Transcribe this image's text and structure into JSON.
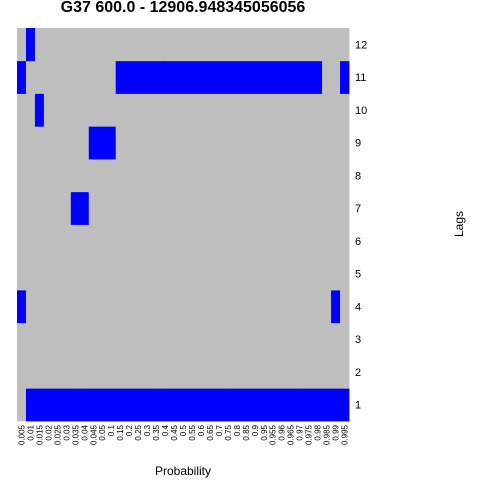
{
  "chart_data": {
    "type": "heatmap",
    "title": "G37 600.0 - 12906.948345056056",
    "xlabel": "Probability",
    "ylabel": "Lags",
    "x_ticks": [
      "0.005",
      "0.01",
      "0.015",
      "0.02",
      "0.025",
      "0.03",
      "0.035",
      "0.04",
      "0.045",
      "0.05",
      "0.1",
      "0.15",
      "0.2",
      "0.25",
      "0.3",
      "0.35",
      "0.4",
      "0.45",
      "0.5",
      "0.55",
      "0.6",
      "0.65",
      "0.7",
      "0.75",
      "0.8",
      "0.85",
      "0.9",
      "0.95",
      "0.955",
      "0.96",
      "0.965",
      "0.97",
      "0.975",
      "0.98",
      "0.985",
      "0.99",
      "0.995"
    ],
    "y_ticks": [
      "1",
      "2",
      "3",
      "4",
      "5",
      "6",
      "7",
      "8",
      "9",
      "10",
      "11",
      "12"
    ],
    "colors": {
      "off": "#bebebe",
      "on": "#0000ff"
    },
    "grid": false,
    "cells": [
      {
        "lag": 1,
        "on": [
          "0.01",
          "0.015",
          "0.02",
          "0.025",
          "0.03",
          "0.035",
          "0.04",
          "0.045",
          "0.05",
          "0.1",
          "0.15",
          "0.2",
          "0.25",
          "0.3",
          "0.35",
          "0.4",
          "0.45",
          "0.5",
          "0.55",
          "0.6",
          "0.65",
          "0.7",
          "0.75",
          "0.8",
          "0.85",
          "0.9",
          "0.95",
          "0.955",
          "0.96",
          "0.965",
          "0.97",
          "0.975",
          "0.98",
          "0.985",
          "0.99",
          "0.995"
        ]
      },
      {
        "lag": 2,
        "on": []
      },
      {
        "lag": 3,
        "on": []
      },
      {
        "lag": 4,
        "on": [
          "0.005",
          "0.99"
        ]
      },
      {
        "lag": 5,
        "on": []
      },
      {
        "lag": 6,
        "on": []
      },
      {
        "lag": 7,
        "on": [
          "0.035",
          "0.04"
        ]
      },
      {
        "lag": 8,
        "on": []
      },
      {
        "lag": 9,
        "on": [
          "0.045",
          "0.05",
          "0.1"
        ]
      },
      {
        "lag": 10,
        "on": [
          "0.015"
        ]
      },
      {
        "lag": 11,
        "on": [
          "0.005",
          "0.15",
          "0.2",
          "0.25",
          "0.3",
          "0.35",
          "0.4",
          "0.45",
          "0.5",
          "0.55",
          "0.6",
          "0.65",
          "0.7",
          "0.75",
          "0.8",
          "0.85",
          "0.9",
          "0.95",
          "0.955",
          "0.96",
          "0.965",
          "0.97",
          "0.975",
          "0.98",
          "0.995"
        ]
      },
      {
        "lag": 12,
        "on": [
          "0.01"
        ]
      }
    ]
  }
}
